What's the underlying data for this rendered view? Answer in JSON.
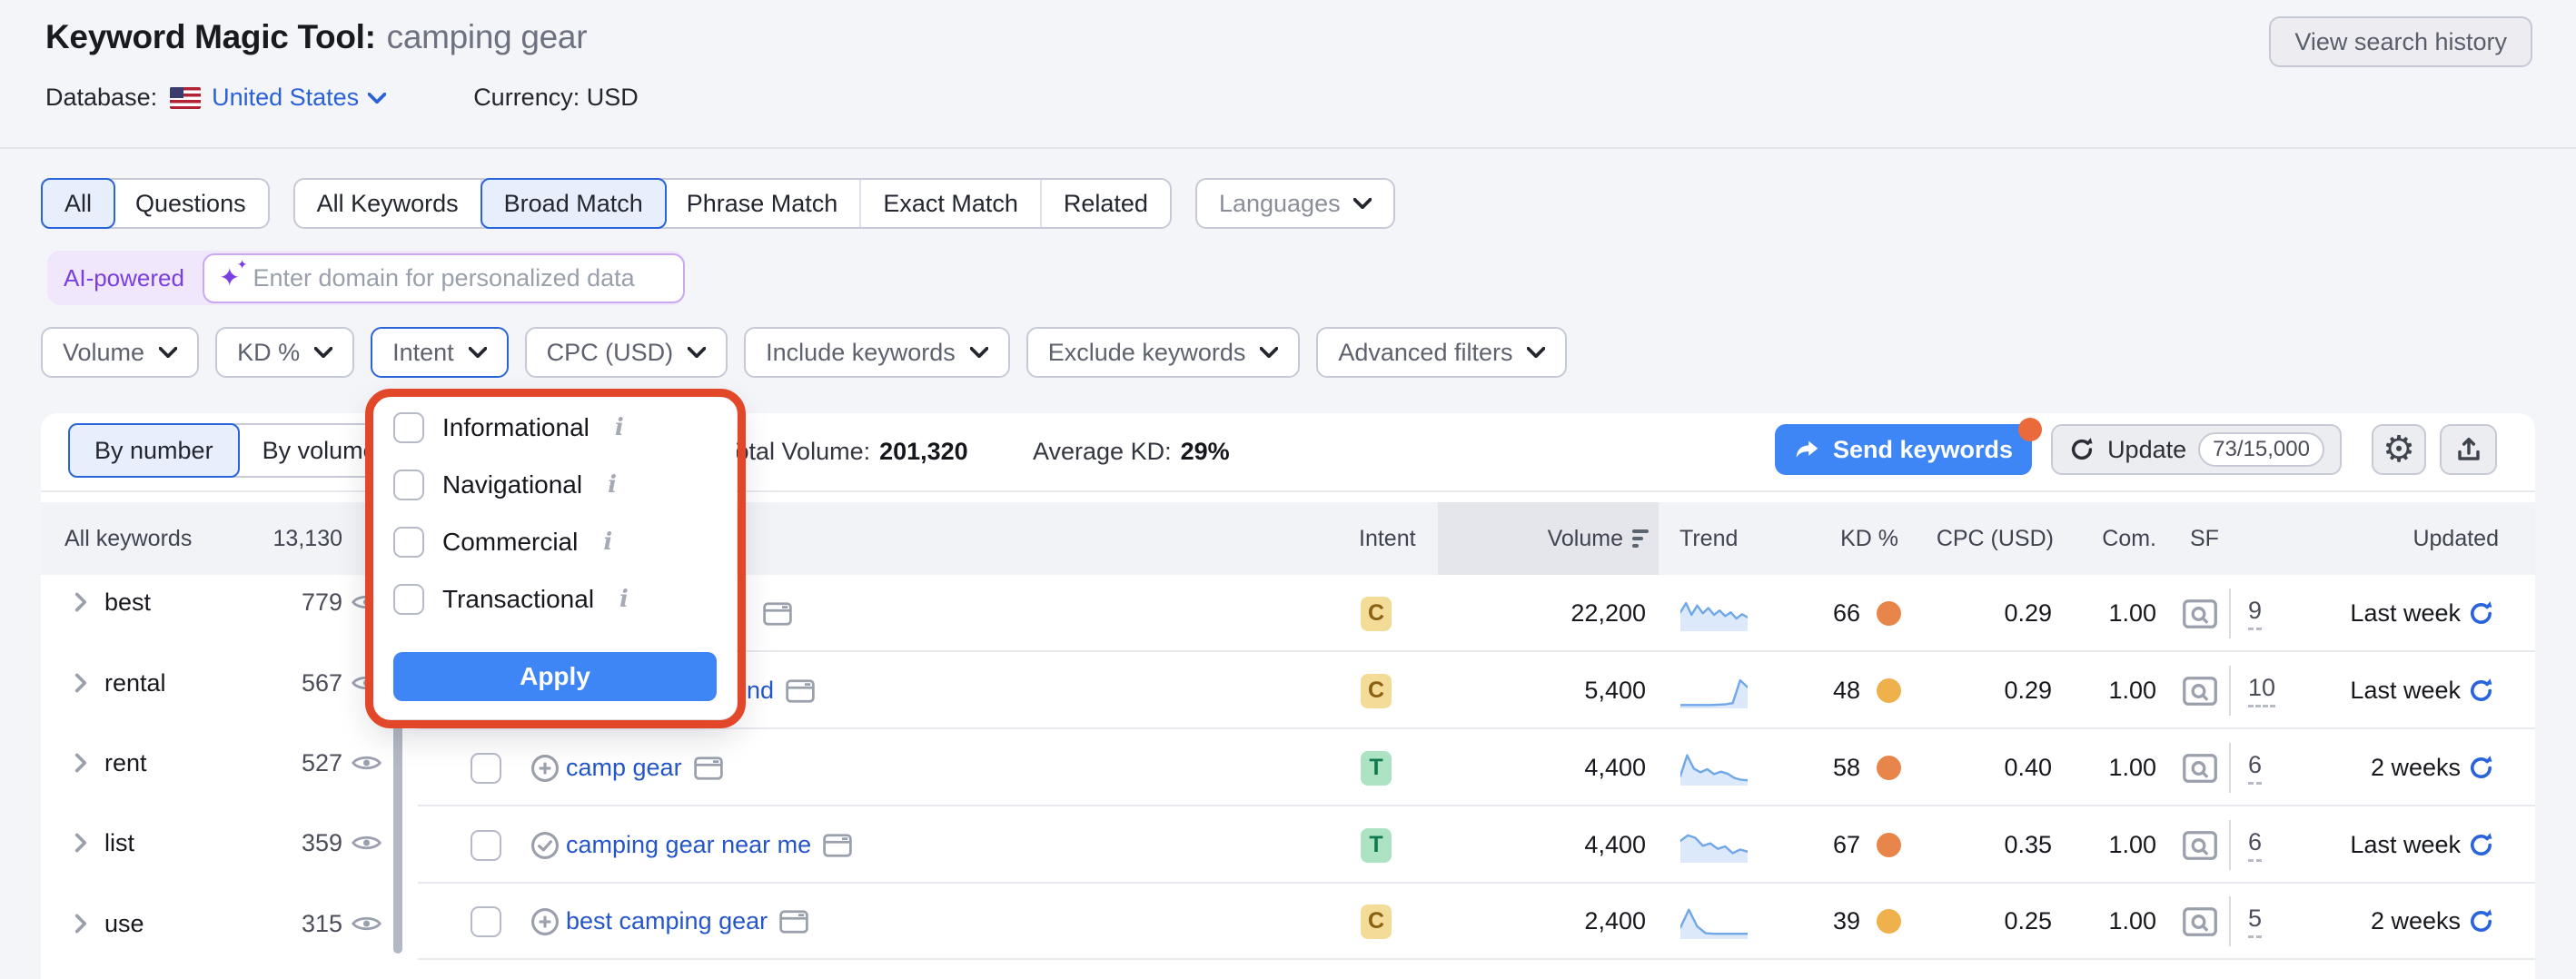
{
  "header": {
    "title": "Keyword Magic Tool:",
    "query": "camping gear",
    "view_history": "View search history",
    "database_label": "Database:",
    "database_value": "United States",
    "currency_label": "Currency:",
    "currency_value": "USD"
  },
  "tabs": {
    "group1": [
      "All",
      "Questions"
    ],
    "group2": [
      "All Keywords",
      "Broad Match",
      "Phrase Match",
      "Exact Match",
      "Related"
    ],
    "selected_group1": "All",
    "selected_group2": "Broad Match",
    "languages": "Languages"
  },
  "ai": {
    "badge": "AI-powered",
    "placeholder": "Enter domain for personalized data"
  },
  "filters": {
    "volume": "Volume",
    "kd": "KD %",
    "intent": "Intent",
    "cpc": "CPC (USD)",
    "include": "Include keywords",
    "exclude": "Exclude keywords",
    "advanced": "Advanced filters"
  },
  "popover": {
    "options": [
      {
        "label": "Informational"
      },
      {
        "label": "Navigational"
      },
      {
        "label": "Commercial"
      },
      {
        "label": "Transactional"
      }
    ],
    "apply": "Apply"
  },
  "toolbar": {
    "by_number": "By number",
    "by_volume": "By volume",
    "total_volume_label": "Total Volume:",
    "total_volume": "201,320",
    "avg_kd_label": "Average KD:",
    "avg_kd": "29%",
    "send": "Send keywords",
    "update": "Update",
    "update_count": "73/15,000"
  },
  "icons": {
    "gear": "⚙"
  },
  "colors": {
    "accent": "#2b64d9",
    "link": "#2456c9",
    "apply_button": "#3e86f5",
    "annotation": "#e3472a",
    "ai_purple": "#7a3fe0"
  },
  "sidebar": {
    "header": "All keywords",
    "header_count": "13,130",
    "items": [
      {
        "label": "best",
        "count": "779"
      },
      {
        "label": "rental",
        "count": "567"
      },
      {
        "label": "rent",
        "count": "527"
      },
      {
        "label": "list",
        "count": "359"
      },
      {
        "label": "use",
        "count": "315"
      }
    ]
  },
  "table": {
    "columns": [
      "Intent",
      "Volume",
      "Trend",
      "KD %",
      "CPC (USD)",
      "Com.",
      "SF",
      "Updated"
    ],
    "rows": [
      {
        "keyword_fragment": "",
        "kw_icon": "none",
        "intent": "C",
        "intent_bg": "#f2dc98",
        "intent_fg": "#8a6012",
        "volume": "22,200",
        "trend": [
          58,
          88,
          50,
          80,
          55,
          72,
          50,
          64,
          46,
          58,
          38,
          52,
          42
        ],
        "kd": "66",
        "kd_dot": "#e8854a",
        "cpc": "0.29",
        "com": "1.00",
        "sf": "9",
        "updated": "Last week"
      },
      {
        "keyword_fragment": "nd",
        "kw_icon": "none",
        "intent": "C",
        "intent_bg": "#f2dc98",
        "intent_fg": "#8a6012",
        "volume": "5,400",
        "trend": [
          8,
          8,
          8,
          8,
          8,
          9,
          10,
          14,
          88,
          66
        ],
        "kd": "48",
        "kd_dot": "#eeb14c",
        "cpc": "0.29",
        "com": "1.00",
        "sf": "10",
        "updated": "Last week"
      },
      {
        "keyword": "camp gear",
        "kw_icon": "plus",
        "intent": "T",
        "intent_bg": "#ade2c3",
        "intent_fg": "#0e7a50",
        "volume": "4,400",
        "trend": [
          28,
          95,
          52,
          40,
          50,
          34,
          42,
          36,
          22,
          16,
          14
        ],
        "kd": "58",
        "kd_dot": "#e8854a",
        "cpc": "0.40",
        "com": "1.00",
        "sf": "6",
        "updated": "2 weeks"
      },
      {
        "keyword": "camping gear near me",
        "kw_icon": "check",
        "intent": "T",
        "intent_bg": "#ade2c3",
        "intent_fg": "#0e7a50",
        "volume": "4,400",
        "trend": [
          68,
          86,
          78,
          52,
          60,
          42,
          50,
          28,
          40,
          33
        ],
        "kd": "67",
        "kd_dot": "#e8854a",
        "cpc": "0.35",
        "com": "1.00",
        "sf": "6",
        "updated": "Last week"
      },
      {
        "keyword": "best camping gear",
        "kw_icon": "plus",
        "intent": "C",
        "intent_bg": "#f2dc98",
        "intent_fg": "#8a6012",
        "volume": "2,400",
        "trend": [
          34,
          92,
          38,
          16,
          14,
          14,
          14,
          14,
          14
        ],
        "kd": "39",
        "kd_dot": "#eeb14c",
        "cpc": "0.25",
        "com": "1.00",
        "sf": "5",
        "updated": "2 weeks"
      }
    ]
  }
}
